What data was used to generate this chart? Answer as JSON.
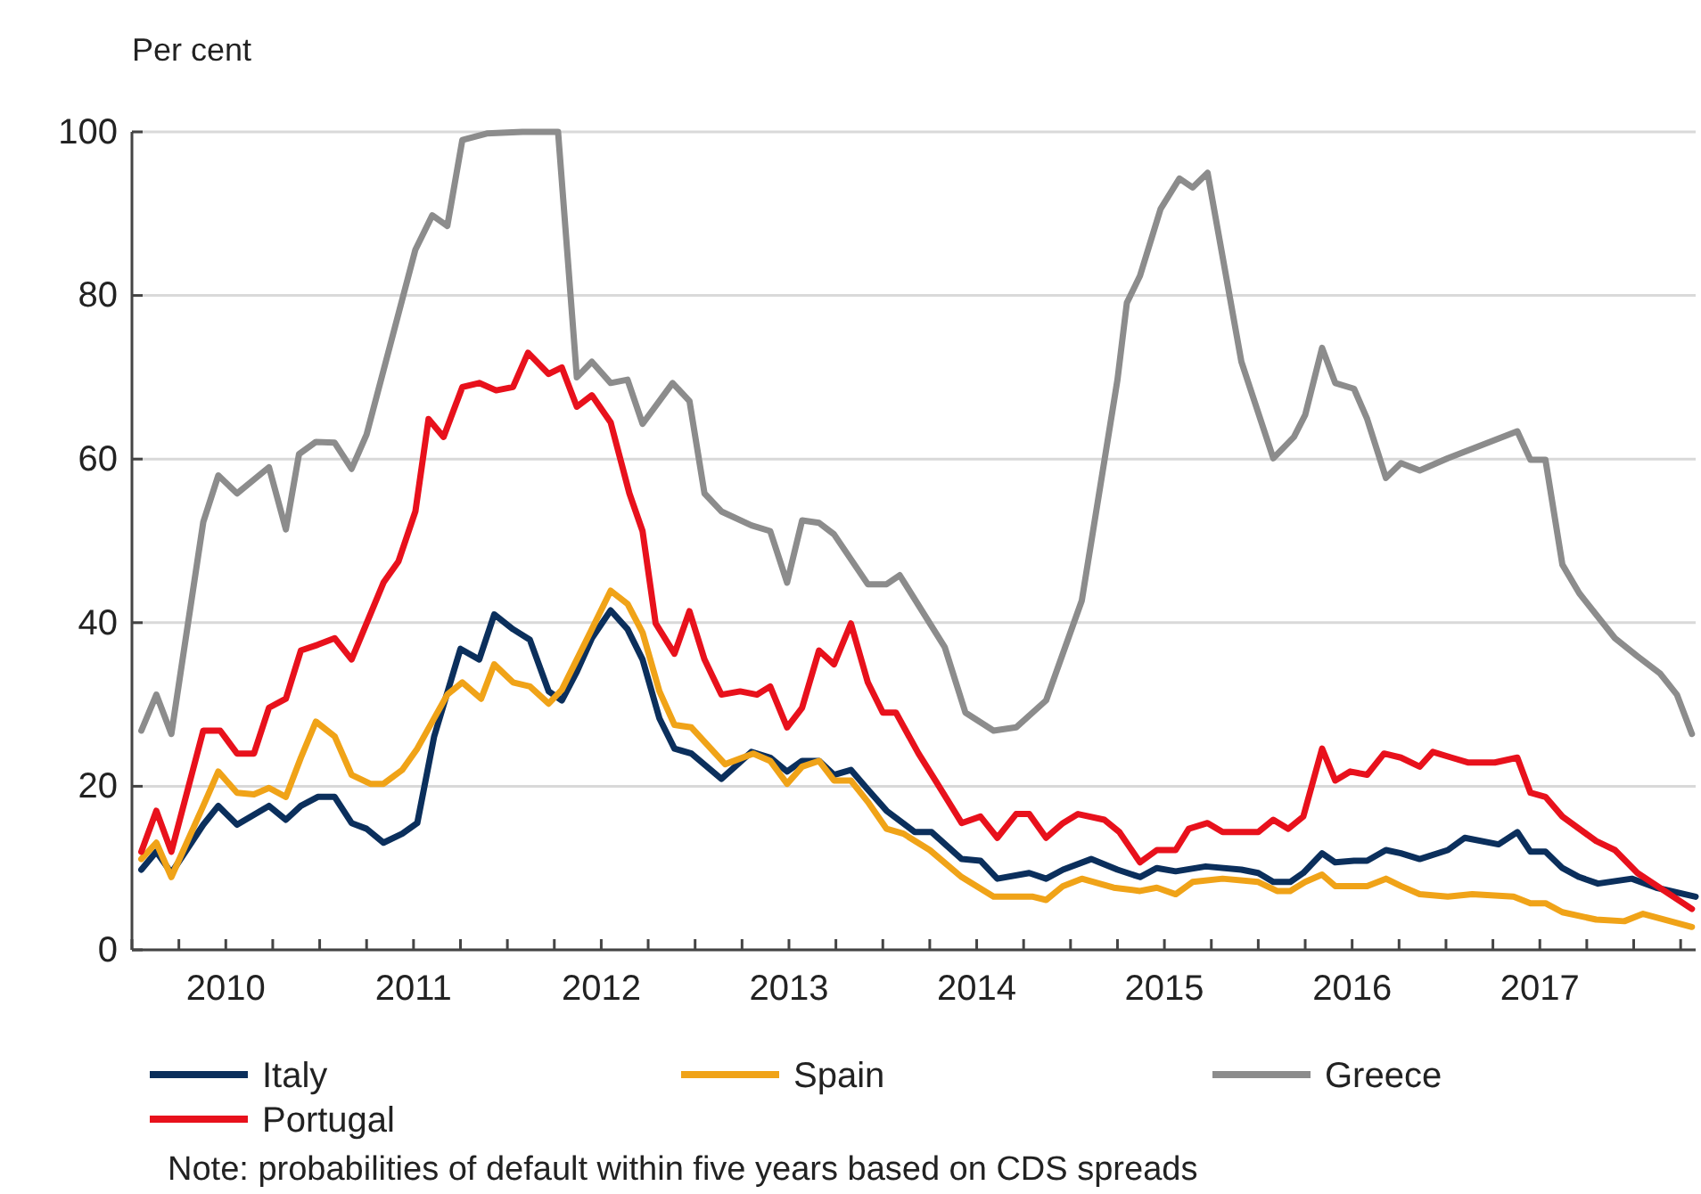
{
  "chart_data": {
    "type": "line",
    "ylabel": "Per cent",
    "annotations": [
      "Note: probabilities of default within five years based on CDS spreads"
    ],
    "xlim": [
      2010,
      2018.33
    ],
    "ylim": [
      0,
      100
    ],
    "yticks": [
      0,
      20,
      40,
      60,
      80,
      100
    ],
    "xticks": [
      {
        "value": 2010,
        "label": null
      },
      {
        "value": 2010.25,
        "label": null
      },
      {
        "value": 2010.5,
        "label": "2010"
      },
      {
        "value": 2010.75,
        "label": null
      },
      {
        "value": 2011,
        "label": null
      },
      {
        "value": 2011.25,
        "label": null
      },
      {
        "value": 2011.5,
        "label": "2011"
      },
      {
        "value": 2011.75,
        "label": null
      },
      {
        "value": 2012,
        "label": null
      },
      {
        "value": 2012.25,
        "label": null
      },
      {
        "value": 2012.5,
        "label": "2012"
      },
      {
        "value": 2012.75,
        "label": null
      },
      {
        "value": 2013,
        "label": null
      },
      {
        "value": 2013.25,
        "label": null
      },
      {
        "value": 2013.5,
        "label": "2013"
      },
      {
        "value": 2013.75,
        "label": null
      },
      {
        "value": 2014,
        "label": null
      },
      {
        "value": 2014.25,
        "label": null
      },
      {
        "value": 2014.5,
        "label": "2014"
      },
      {
        "value": 2014.75,
        "label": null
      },
      {
        "value": 2015,
        "label": null
      },
      {
        "value": 2015.25,
        "label": null
      },
      {
        "value": 2015.5,
        "label": "2015"
      },
      {
        "value": 2015.75,
        "label": null
      },
      {
        "value": 2016,
        "label": null
      },
      {
        "value": 2016.25,
        "label": null
      },
      {
        "value": 2016.5,
        "label": "2016"
      },
      {
        "value": 2016.75,
        "label": null
      },
      {
        "value": 2017,
        "label": null
      },
      {
        "value": 2017.25,
        "label": null
      },
      {
        "value": 2017.5,
        "label": "2017"
      },
      {
        "value": 2017.75,
        "label": null
      },
      {
        "value": 2018,
        "label": null
      },
      {
        "value": 2018.25,
        "label": null
      }
    ],
    "grid": "y",
    "legend": "bottom",
    "marker": "none",
    "line_style": "solid",
    "series": [
      {
        "name": "Italy",
        "color": "#0b2f5c",
        "x": [
          2010.05,
          2010.13,
          2010.21,
          2010.38,
          2010.46,
          2010.56,
          2010.73,
          2010.82,
          2010.9,
          2010.99,
          2011.08,
          2011.17,
          2011.25,
          2011.34,
          2011.44,
          2011.52,
          2011.61,
          2011.75,
          2011.85,
          2011.93,
          2012.03,
          2012.12,
          2012.22,
          2012.29,
          2012.37,
          2012.45,
          2012.55,
          2012.64,
          2012.72,
          2012.81,
          2012.89,
          2012.98,
          2013.14,
          2013.3,
          2013.4,
          2013.49,
          2013.57,
          2013.66,
          2013.74,
          2013.83,
          2013.92,
          2014.02,
          2014.17,
          2014.26,
          2014.42,
          2014.52,
          2014.61,
          2014.78,
          2014.87,
          2014.96,
          2015.11,
          2015.25,
          2015.37,
          2015.46,
          2015.56,
          2015.72,
          2015.91,
          2016.0,
          2016.08,
          2016.17,
          2016.24,
          2016.34,
          2016.41,
          2016.51,
          2016.58,
          2016.68,
          2016.76,
          2016.86,
          2017.01,
          2017.1,
          2017.28,
          2017.38,
          2017.45,
          2017.53,
          2017.62,
          2017.71,
          2017.81,
          2017.99,
          2018.12,
          2018.33
        ],
        "values": [
          9.8,
          12,
          9.4,
          15.3,
          17.6,
          15.3,
          17.6,
          15.9,
          17.6,
          18.7,
          18.7,
          15.5,
          14.8,
          13.1,
          14.2,
          15.5,
          26.1,
          36.8,
          35.5,
          41,
          39.2,
          37.9,
          31.6,
          30.5,
          34,
          38.1,
          41.5,
          39.2,
          35.5,
          28.3,
          24.6,
          24,
          20.9,
          24.2,
          23.5,
          21.8,
          23.1,
          23.1,
          21.4,
          22,
          19.6,
          17,
          14.4,
          14.4,
          11.1,
          10.9,
          8.7,
          9.4,
          8.7,
          9.8,
          11.1,
          9.8,
          8.9,
          10,
          9.6,
          10.2,
          9.8,
          9.4,
          8.3,
          8.3,
          9.4,
          11.8,
          10.7,
          10.9,
          10.9,
          12.2,
          11.8,
          11.1,
          12.2,
          13.7,
          12.9,
          14.4,
          12,
          12,
          10,
          8.9,
          8.1,
          8.7,
          7.6,
          6.5
        ]
      },
      {
        "name": "Spain",
        "color": "#f0a318",
        "x": [
          2010.05,
          2010.13,
          2010.21,
          2010.38,
          2010.46,
          2010.56,
          2010.65,
          2010.73,
          2010.82,
          2010.9,
          2010.98,
          2011.08,
          2011.17,
          2011.27,
          2011.34,
          2011.44,
          2011.52,
          2011.68,
          2011.76,
          2011.86,
          2011.93,
          2012.03,
          2012.12,
          2012.22,
          2012.29,
          2012.37,
          2012.45,
          2012.55,
          2012.64,
          2012.72,
          2012.81,
          2012.89,
          2012.98,
          2013.16,
          2013.31,
          2013.4,
          2013.49,
          2013.57,
          2013.66,
          2013.74,
          2013.83,
          2013.92,
          2014.02,
          2014.11,
          2014.25,
          2014.42,
          2014.59,
          2014.8,
          2014.87,
          2014.96,
          2015.06,
          2015.23,
          2015.37,
          2015.46,
          2015.56,
          2015.65,
          2015.81,
          2016.0,
          2016.1,
          2016.17,
          2016.25,
          2016.34,
          2016.41,
          2016.58,
          2016.68,
          2016.76,
          2016.86,
          2017.01,
          2017.14,
          2017.36,
          2017.45,
          2017.53,
          2017.62,
          2017.8,
          2017.95,
          2018.05,
          2018.31
        ],
        "values": [
          11.1,
          13.1,
          8.9,
          17.6,
          21.8,
          19.2,
          19,
          19.8,
          18.7,
          23.5,
          27.9,
          26.1,
          21.4,
          20.3,
          20.3,
          22,
          24.6,
          31.2,
          32.7,
          30.7,
          34.9,
          32.7,
          32.2,
          30.1,
          31.8,
          35.5,
          39.2,
          43.9,
          42.3,
          38.8,
          31.6,
          27.5,
          27.2,
          22.7,
          24,
          23.1,
          20.3,
          22.4,
          23.1,
          20.7,
          20.7,
          18.1,
          14.8,
          14.2,
          12.2,
          8.9,
          6.5,
          6.5,
          6.1,
          7.8,
          8.7,
          7.6,
          7.2,
          7.6,
          6.8,
          8.3,
          8.7,
          8.3,
          7.2,
          7.2,
          8.3,
          9.2,
          7.8,
          7.8,
          8.7,
          7.8,
          6.8,
          6.5,
          6.8,
          6.5,
          5.7,
          5.7,
          4.6,
          3.7,
          3.5,
          4.4,
          2.8
        ]
      },
      {
        "name": "Greece",
        "color": "#8c8c8c",
        "x": [
          2010.05,
          2010.13,
          2010.21,
          2010.38,
          2010.46,
          2010.56,
          2010.73,
          2010.82,
          2010.89,
          2010.98,
          2011.08,
          2011.17,
          2011.25,
          2011.51,
          2011.6,
          2011.68,
          2011.76,
          2011.89,
          2012.08,
          2012.27,
          2012.37,
          2012.45,
          2012.55,
          2012.64,
          2012.72,
          2012.88,
          2012.97,
          2013.05,
          2013.14,
          2013.3,
          2013.4,
          2013.49,
          2013.57,
          2013.66,
          2013.74,
          2013.92,
          2014.02,
          2014.09,
          2014.33,
          2014.44,
          2014.59,
          2014.71,
          2014.87,
          2015.06,
          2015.25,
          2015.3,
          2015.37,
          2015.48,
          2015.58,
          2015.65,
          2015.73,
          2015.91,
          2016.08,
          2016.19,
          2016.25,
          2016.34,
          2016.41,
          2016.51,
          2016.58,
          2016.68,
          2016.76,
          2016.86,
          2017.01,
          2017.38,
          2017.45,
          2017.53,
          2017.62,
          2017.71,
          2017.9,
          2018.02,
          2018.14,
          2018.23,
          2018.31
        ],
        "values": [
          26.8,
          31.2,
          26.4,
          52.3,
          58,
          55.8,
          59,
          51.4,
          60.6,
          62.1,
          62,
          58.8,
          63,
          85.6,
          89.8,
          88.5,
          99,
          99.8,
          100,
          100,
          70,
          71.9,
          69.3,
          69.7,
          64.3,
          69.3,
          67.1,
          55.8,
          53.6,
          51.9,
          51.2,
          44.9,
          52.5,
          52.2,
          50.8,
          44.7,
          44.7,
          45.8,
          37,
          29,
          26.8,
          27.2,
          30.5,
          42.7,
          69.7,
          79.1,
          82.4,
          90.6,
          94.3,
          93.2,
          95,
          71.9,
          60.1,
          62.7,
          65.4,
          73.6,
          69.3,
          68.6,
          64.9,
          57.7,
          59.5,
          58.6,
          60.1,
          63.4,
          59.9,
          59.9,
          47.1,
          43.6,
          38.1,
          35.9,
          33.8,
          31.2,
          26.4
        ]
      },
      {
        "name": "Portugal",
        "color": "#e8111c",
        "x": [
          2010.05,
          2010.13,
          2010.21,
          2010.38,
          2010.47,
          2010.56,
          2010.65,
          2010.73,
          2010.82,
          2010.9,
          2010.99,
          2011.08,
          2011.17,
          2011.34,
          2011.42,
          2011.51,
          2011.58,
          2011.66,
          2011.76,
          2011.85,
          2011.94,
          2012.03,
          2012.11,
          2012.22,
          2012.29,
          2012.37,
          2012.45,
          2012.55,
          2012.65,
          2012.72,
          2012.79,
          2012.89,
          2012.97,
          2013.05,
          2013.14,
          2013.24,
          2013.33,
          2013.4,
          2013.49,
          2013.57,
          2013.66,
          2013.74,
          2013.83,
          2013.92,
          2014.0,
          2014.07,
          2014.19,
          2014.28,
          2014.42,
          2014.52,
          2014.61,
          2014.71,
          2014.78,
          2014.87,
          2014.96,
          2015.04,
          2015.18,
          2015.26,
          2015.37,
          2015.46,
          2015.56,
          2015.63,
          2015.73,
          2015.81,
          2016.0,
          2016.08,
          2016.16,
          2016.24,
          2016.34,
          2016.41,
          2016.49,
          2016.58,
          2016.67,
          2016.76,
          2016.86,
          2016.93,
          2017.03,
          2017.12,
          2017.26,
          2017.38,
          2017.45,
          2017.53,
          2017.62,
          2017.8,
          2017.9,
          2018.02,
          2018.31
        ],
        "values": [
          12,
          17,
          12,
          26.8,
          26.8,
          24,
          24,
          29.6,
          30.7,
          36.6,
          37.3,
          38.1,
          35.5,
          44.9,
          47.5,
          53.6,
          64.9,
          62.7,
          68.8,
          69.3,
          68.4,
          68.8,
          73,
          70.4,
          71.2,
          66.4,
          67.8,
          64.5,
          55.8,
          51.2,
          39.9,
          36.2,
          41.4,
          35.5,
          31.2,
          31.6,
          31.2,
          32.2,
          27.2,
          29.6,
          36.6,
          34.9,
          39.9,
          32.7,
          29,
          29,
          24,
          20.7,
          15.5,
          16.3,
          13.7,
          16.6,
          16.6,
          13.7,
          15.5,
          16.6,
          15.9,
          14.4,
          10.7,
          12.2,
          12.2,
          14.8,
          15.5,
          14.4,
          14.4,
          15.9,
          14.8,
          16.3,
          24.6,
          20.7,
          21.8,
          21.4,
          24,
          23.5,
          22.4,
          24.2,
          23.5,
          22.9,
          22.9,
          23.5,
          19.2,
          18.7,
          16.3,
          13.3,
          12.2,
          9.4,
          5
        ]
      }
    ]
  }
}
